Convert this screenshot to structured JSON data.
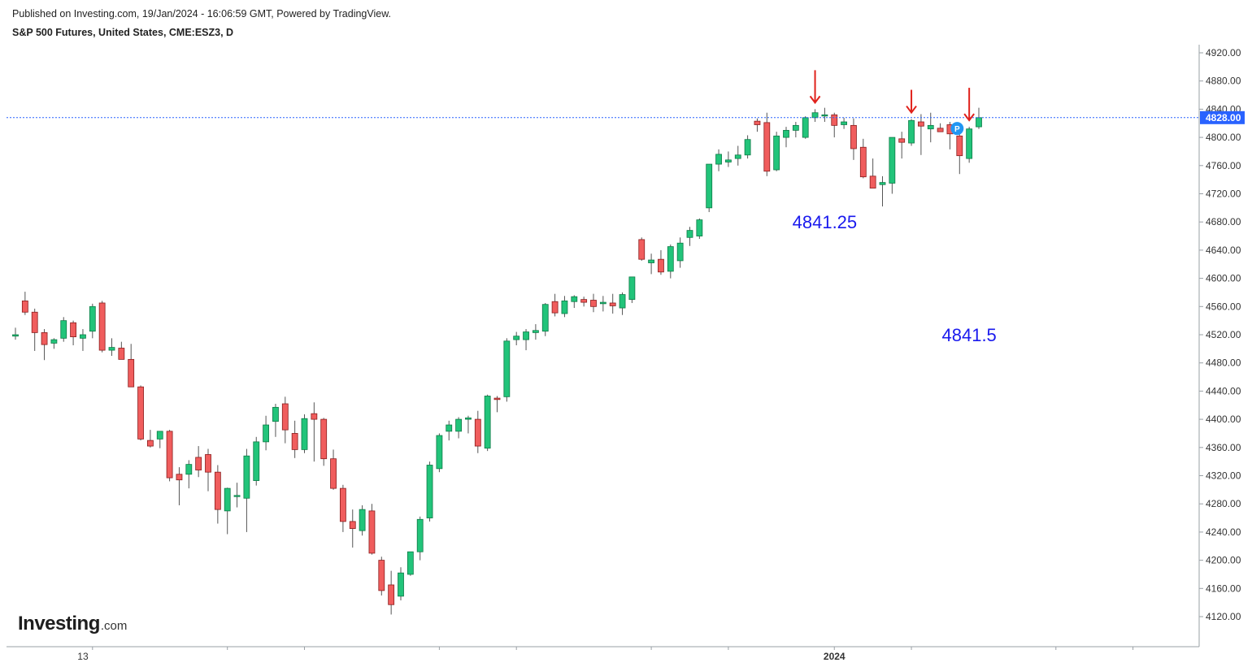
{
  "header": {
    "published": "Published on Investing.com, 19/Jan/2024 - 16:06:59 GMT, Powered by TradingView.",
    "symbol": "S&P 500 Futures, United States, CME:ESZ3, D"
  },
  "logo": {
    "brand": "Investing",
    "suffix": ".com"
  },
  "colors": {
    "up": "#22c47a",
    "up_border": "#0e7a46",
    "down": "#f05d5d",
    "down_border": "#8a1d1d",
    "wick": "#555555",
    "price_line": "#2962ff",
    "annotation": "#1a1aee",
    "arrow": "#e0211b",
    "badge": "#2196f3"
  },
  "chart_data": {
    "type": "candlestick",
    "timeframe": "D",
    "ylim": [
      4080,
      4940
    ],
    "y_ticks": [
      4920,
      4880,
      4840,
      4800,
      4760,
      4720,
      4680,
      4640,
      4600,
      4560,
      4520,
      4480,
      4440,
      4400,
      4360,
      4320,
      4280,
      4240,
      4200,
      4160,
      4120
    ],
    "y_tick_labels": [
      "4920.00",
      "4880.00",
      "4840.00",
      "4800.00",
      "4760.00",
      "4720.00",
      "4680.00",
      "4640.00",
      "4600.00",
      "4560.00",
      "4520.00",
      "4480.00",
      "4440.00",
      "4400.00",
      "4360.00",
      "4320.00",
      "4280.00",
      "4240.00",
      "4200.00",
      "4160.00",
      "4120.00"
    ],
    "x_labels": [
      {
        "index": 7,
        "text": "13"
      },
      {
        "index": 85,
        "text": "2024"
      }
    ],
    "last_price": 4828,
    "last_price_label": "4828.00",
    "annotations": [
      {
        "index": 84,
        "price": 4841.25,
        "text": "4841.25"
      },
      {
        "index": 99,
        "price": 4841.5,
        "text": "4841.5"
      }
    ],
    "annotation_label_prices": [
      4680,
      4520
    ],
    "arrows": [
      83,
      93,
      99
    ],
    "badge": {
      "index": 98,
      "text": "P"
    },
    "candles": [
      [
        4518,
        4530,
        4513,
        4520
      ],
      [
        4568,
        4581,
        4548,
        4552
      ],
      [
        4552,
        4557,
        4497,
        4523
      ],
      [
        4523,
        4528,
        4484,
        4506
      ],
      [
        4508,
        4515,
        4500,
        4513
      ],
      [
        4515,
        4545,
        4510,
        4540
      ],
      [
        4537,
        4540,
        4505,
        4517
      ],
      [
        4515,
        4528,
        4497,
        4520
      ],
      [
        4525,
        4564,
        4515,
        4560
      ],
      [
        4565,
        4568,
        4495,
        4498
      ],
      [
        4498,
        4515,
        4490,
        4502
      ],
      [
        4501,
        4510,
        4486,
        4485
      ],
      [
        4485,
        4507,
        4446,
        4446
      ],
      [
        4446,
        4448,
        4370,
        4372
      ],
      [
        4370,
        4385,
        4360,
        4362
      ],
      [
        4372,
        4383,
        4359,
        4383
      ],
      [
        4383,
        4385,
        4312,
        4317
      ],
      [
        4322,
        4332,
        4278,
        4314
      ],
      [
        4322,
        4342,
        4302,
        4336
      ],
      [
        4346,
        4362,
        4318,
        4328
      ],
      [
        4350,
        4358,
        4298,
        4325
      ],
      [
        4325,
        4335,
        4252,
        4272
      ],
      [
        4270,
        4303,
        4237,
        4302
      ],
      [
        4292,
        4310,
        4275,
        4292
      ],
      [
        4288,
        4358,
        4240,
        4348
      ],
      [
        4313,
        4375,
        4306,
        4368
      ],
      [
        4368,
        4405,
        4356,
        4392
      ],
      [
        4397,
        4422,
        4375,
        4417
      ],
      [
        4422,
        4432,
        4366,
        4385
      ],
      [
        4380,
        4398,
        4345,
        4357
      ],
      [
        4357,
        4407,
        4352,
        4401
      ],
      [
        4408,
        4424,
        4340,
        4400
      ],
      [
        4400,
        4402,
        4334,
        4344
      ],
      [
        4344,
        4357,
        4300,
        4302
      ],
      [
        4302,
        4307,
        4240,
        4255
      ],
      [
        4255,
        4272,
        4218,
        4245
      ],
      [
        4242,
        4278,
        4235,
        4272
      ],
      [
        4270,
        4280,
        4208,
        4210
      ],
      [
        4200,
        4205,
        4150,
        4157
      ],
      [
        4165,
        4185,
        4123,
        4137
      ],
      [
        4149,
        4190,
        4143,
        4182
      ],
      [
        4180,
        4212,
        4178,
        4212
      ],
      [
        4212,
        4262,
        4200,
        4258
      ],
      [
        4260,
        4340,
        4255,
        4335
      ],
      [
        4330,
        4380,
        4325,
        4377
      ],
      [
        4383,
        4398,
        4370,
        4392
      ],
      [
        4383,
        4403,
        4373,
        4400
      ],
      [
        4400,
        4405,
        4380,
        4402
      ],
      [
        4400,
        4412,
        4352,
        4362
      ],
      [
        4359,
        4435,
        4355,
        4433
      ],
      [
        4430,
        4433,
        4410,
        4428
      ],
      [
        4432,
        4515,
        4425,
        4511
      ],
      [
        4513,
        4524,
        4505,
        4518
      ],
      [
        4513,
        4528,
        4498,
        4524
      ],
      [
        4523,
        4535,
        4513,
        4526
      ],
      [
        4525,
        4565,
        4518,
        4563
      ],
      [
        4567,
        4578,
        4546,
        4551
      ],
      [
        4550,
        4575,
        4545,
        4568
      ],
      [
        4567,
        4576,
        4558,
        4574
      ],
      [
        4570,
        4574,
        4560,
        4566
      ],
      [
        4569,
        4578,
        4552,
        4560
      ],
      [
        4564,
        4575,
        4553,
        4566
      ],
      [
        4565,
        4578,
        4550,
        4561
      ],
      [
        4558,
        4580,
        4548,
        4577
      ],
      [
        4570,
        4602,
        4565,
        4602
      ],
      [
        4655,
        4658,
        4625,
        4627
      ],
      [
        4622,
        4635,
        4606,
        4626
      ],
      [
        4627,
        4640,
        4605,
        4609
      ],
      [
        4610,
        4648,
        4600,
        4645
      ],
      [
        4625,
        4658,
        4615,
        4650
      ],
      [
        4658,
        4673,
        4646,
        4668
      ],
      [
        4660,
        4685,
        4656,
        4683
      ],
      [
        4700,
        4762,
        4694,
        4762
      ],
      [
        4762,
        4783,
        4752,
        4776
      ],
      [
        4765,
        4780,
        4758,
        4768
      ],
      [
        4770,
        4788,
        4760,
        4775
      ],
      [
        4775,
        4803,
        4770,
        4797
      ],
      [
        4823,
        4827,
        4808,
        4818
      ],
      [
        4821,
        4835,
        4745,
        4752
      ],
      [
        4754,
        4808,
        4752,
        4802
      ],
      [
        4800,
        4815,
        4786,
        4810
      ],
      [
        4810,
        4822,
        4800,
        4817
      ],
      [
        4800,
        4830,
        4798,
        4828
      ],
      [
        4828,
        4840,
        4822,
        4835
      ],
      [
        4832,
        4842,
        4822,
        4832
      ],
      [
        4832,
        4835,
        4800,
        4817
      ],
      [
        4818,
        4828,
        4812,
        4822
      ],
      [
        4817,
        4827,
        4768,
        4784
      ],
      [
        4786,
        4798,
        4742,
        4744
      ],
      [
        4745,
        4770,
        4730,
        4728
      ],
      [
        4733,
        4745,
        4702,
        4736
      ],
      [
        4735,
        4800,
        4720,
        4800
      ],
      [
        4798,
        4808,
        4770,
        4793
      ],
      [
        4792,
        4826,
        4788,
        4824
      ],
      [
        4822,
        4833,
        4775,
        4816
      ],
      [
        4812,
        4835,
        4793,
        4817
      ],
      [
        4813,
        4820,
        4810,
        4808
      ],
      [
        4818,
        4822,
        4783,
        4805
      ],
      [
        4802,
        4808,
        4748,
        4774
      ],
      [
        4770,
        4815,
        4764,
        4812
      ],
      [
        4815,
        4842,
        4812,
        4828
      ]
    ]
  }
}
